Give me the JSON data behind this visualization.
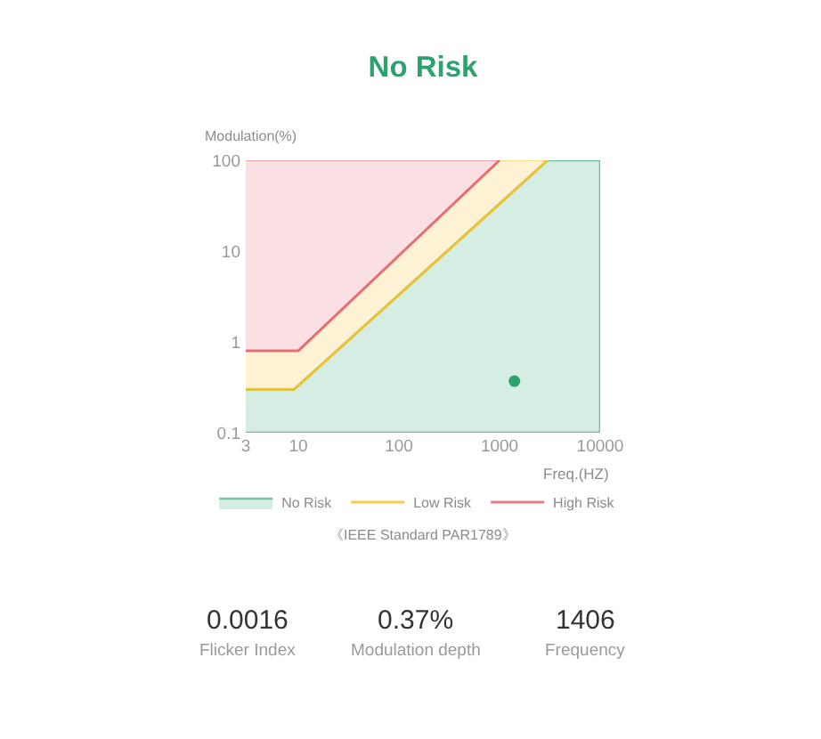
{
  "chart_data": {
    "type": "area",
    "title": "No Risk",
    "xlabel": "Freq.(HZ)",
    "ylabel": "Modulation(%)",
    "log": "xy",
    "xlim": [
      3,
      10000
    ],
    "ylim": [
      0.1,
      100
    ],
    "xticks": [
      3,
      10,
      100,
      1000,
      10000
    ],
    "yticks": [
      0.1,
      1,
      10,
      100
    ],
    "legend": "bottom",
    "series": [
      {
        "name": "No Risk",
        "color": "#2ca36c",
        "x": [
          3,
          9,
          3000,
          10000
        ],
        "values": [
          0.3,
          0.3,
          100,
          100
        ]
      },
      {
        "name": "Low Risk",
        "type": "line",
        "color": "#f5c22a",
        "x": [
          3,
          9,
          10,
          1000,
          3000
        ],
        "values": [
          0.3,
          0.3,
          0.33,
          33,
          100
        ],
        "lower": [
          0.3,
          0.3,
          0.33,
          33,
          100
        ],
        "upper": [
          0.8,
          0.8,
          0.8,
          100,
          100
        ]
      },
      {
        "name": "High Risk",
        "type": "line",
        "color": "#e5646e",
        "x": [
          3,
          10,
          1000
        ],
        "values": [
          0.8,
          0.8,
          100
        ],
        "lower": [
          0.8,
          0.8,
          100
        ],
        "upper": [
          100,
          100,
          100
        ]
      },
      {
        "type": "scatter",
        "color": "#2ca36c",
        "marker": "circle",
        "x": [
          1406
        ],
        "values": [
          0.37
        ]
      }
    ],
    "annotations": [
      "《IEEE Standard PAR1789》",
      "0.0016",
      "Flicker Index",
      "0.37%",
      "Modulation depth",
      "1406",
      "Frequency"
    ]
  }
}
